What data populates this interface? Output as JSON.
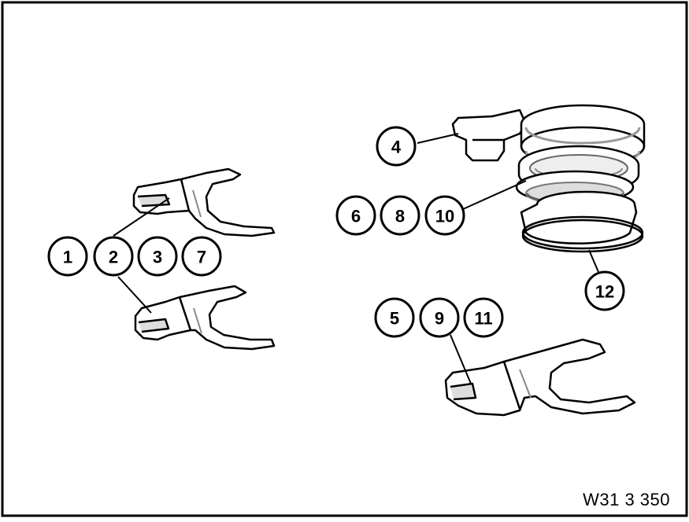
{
  "figure_code": "W31 3 350",
  "callouts": {
    "c1": "1",
    "c2": "2",
    "c3": "3",
    "c7": "7",
    "c4": "4",
    "c6": "6",
    "c8": "8",
    "c10": "10",
    "c12": "12",
    "c5": "5",
    "c9": "9",
    "c11": "11"
  },
  "parts": [
    {
      "id": "shift-fork-upper-left",
      "callouts": [
        "1",
        "2",
        "3",
        "7"
      ]
    },
    {
      "id": "shift-fork-lower-left",
      "callouts": [
        "1",
        "2",
        "3",
        "7"
      ]
    },
    {
      "id": "sleeve-assembly",
      "callouts": [
        "4"
      ]
    },
    {
      "id": "synchro-sleeve",
      "callouts": [
        "6",
        "8",
        "10"
      ]
    },
    {
      "id": "snap-ring",
      "callouts": [
        "12"
      ]
    },
    {
      "id": "shift-fork-lower-right",
      "callouts": [
        "5",
        "9",
        "11"
      ]
    }
  ]
}
